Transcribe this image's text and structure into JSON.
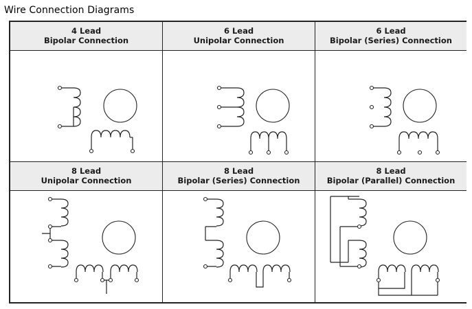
{
  "title": "Wire Connection Diagrams",
  "cells": [
    {
      "lead": "4 Lead",
      "connection": "Bipolar Connection"
    },
    {
      "lead": "6 Lead",
      "connection": "Unipolar Connection"
    },
    {
      "lead": "6 Lead",
      "connection": "Bipolar (Series) Connection"
    },
    {
      "lead": "8 Lead",
      "connection": "Unipolar Connection"
    },
    {
      "lead": "8 Lead",
      "connection": "Bipolar (Series) Connection"
    },
    {
      "lead": "8 Lead",
      "connection": "Bipolar (Parallel) Connection"
    }
  ]
}
